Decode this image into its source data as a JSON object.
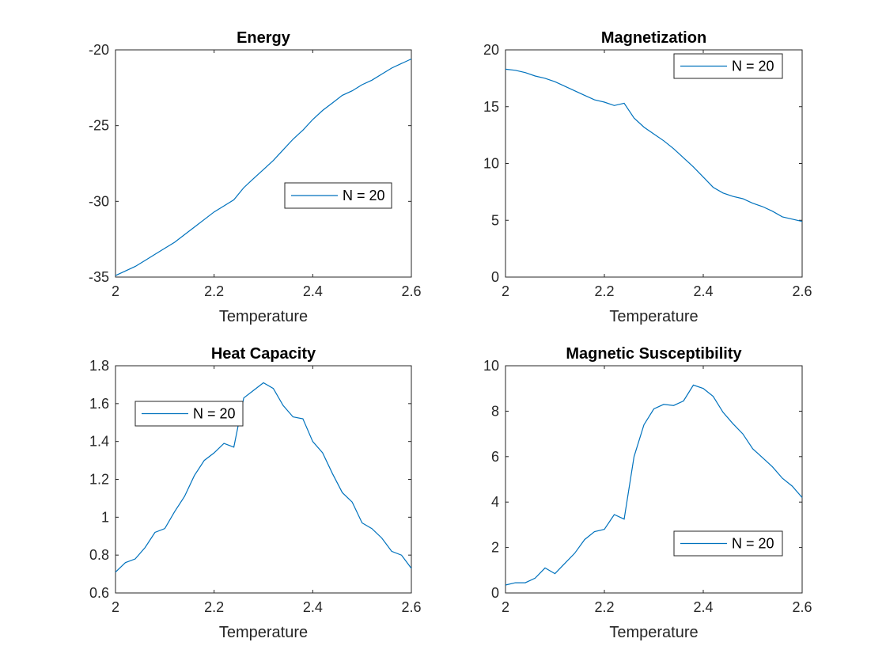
{
  "chart_data": [
    {
      "type": "line",
      "title": "Energy",
      "xlabel": "Temperature",
      "ylabel": "",
      "xlim": [
        2,
        2.6
      ],
      "ylim": [
        -35,
        -20
      ],
      "xticks": [
        "2",
        "2.2",
        "2.4",
        "2.6"
      ],
      "yticks": [
        "-35",
        "-30",
        "-25",
        "-20"
      ],
      "legend": "inside-right-middle",
      "series": [
        {
          "name": "N = 20",
          "color": "#0072BD",
          "x": [
            2.0,
            2.02,
            2.04,
            2.06,
            2.08,
            2.1,
            2.12,
            2.14,
            2.16,
            2.18,
            2.2,
            2.22,
            2.24,
            2.26,
            2.28,
            2.3,
            2.32,
            2.34,
            2.36,
            2.38,
            2.4,
            2.42,
            2.44,
            2.46,
            2.48,
            2.5,
            2.52,
            2.54,
            2.56,
            2.58,
            2.6
          ],
          "y": [
            -34.9,
            -34.6,
            -34.3,
            -33.9,
            -33.5,
            -33.1,
            -32.7,
            -32.2,
            -31.7,
            -31.2,
            -30.7,
            -30.3,
            -29.9,
            -29.1,
            -28.5,
            -27.9,
            -27.3,
            -26.6,
            -25.9,
            -25.3,
            -24.6,
            -24.0,
            -23.5,
            -23.0,
            -22.7,
            -22.3,
            -22.0,
            -21.6,
            -21.2,
            -20.9,
            -20.6
          ]
        }
      ]
    },
    {
      "type": "line",
      "title": "Magnetization",
      "xlabel": "Temperature",
      "ylabel": "",
      "xlim": [
        2,
        2.6
      ],
      "ylim": [
        0,
        20
      ],
      "xticks": [
        "2",
        "2.2",
        "2.4",
        "2.6"
      ],
      "yticks": [
        "0",
        "5",
        "10",
        "15",
        "20"
      ],
      "legend": "top-right",
      "series": [
        {
          "name": "N = 20",
          "color": "#0072BD",
          "x": [
            2.0,
            2.02,
            2.04,
            2.06,
            2.08,
            2.1,
            2.12,
            2.14,
            2.16,
            2.18,
            2.2,
            2.22,
            2.24,
            2.26,
            2.28,
            2.3,
            2.32,
            2.34,
            2.36,
            2.38,
            2.4,
            2.42,
            2.44,
            2.46,
            2.48,
            2.5,
            2.52,
            2.54,
            2.56,
            2.58,
            2.6
          ],
          "y": [
            18.3,
            18.2,
            18.0,
            17.7,
            17.5,
            17.2,
            16.8,
            16.4,
            16.0,
            15.6,
            15.4,
            15.1,
            15.3,
            14.0,
            13.2,
            12.6,
            12.0,
            11.3,
            10.5,
            9.7,
            8.8,
            7.9,
            7.4,
            7.1,
            6.9,
            6.5,
            6.2,
            5.8,
            5.3,
            5.1,
            4.9
          ]
        }
      ]
    },
    {
      "type": "line",
      "title": "Heat Capacity",
      "xlabel": "Temperature",
      "ylabel": "",
      "xlim": [
        2,
        2.6
      ],
      "ylim": [
        0.6,
        1.8
      ],
      "xticks": [
        "2",
        "2.2",
        "2.4",
        "2.6"
      ],
      "yticks": [
        "0.6",
        "0.8",
        "1",
        "1.2",
        "1.4",
        "1.6",
        "1.8"
      ],
      "legend": "top-left",
      "series": [
        {
          "name": "N = 20",
          "color": "#0072BD",
          "x": [
            2.0,
            2.02,
            2.04,
            2.06,
            2.08,
            2.1,
            2.12,
            2.14,
            2.16,
            2.18,
            2.2,
            2.22,
            2.24,
            2.26,
            2.28,
            2.3,
            2.32,
            2.34,
            2.36,
            2.38,
            2.4,
            2.42,
            2.44,
            2.46,
            2.48,
            2.5,
            2.52,
            2.54,
            2.56,
            2.58,
            2.6
          ],
          "y": [
            0.71,
            0.76,
            0.78,
            0.84,
            0.92,
            0.94,
            1.03,
            1.11,
            1.22,
            1.3,
            1.34,
            1.39,
            1.37,
            1.63,
            1.67,
            1.71,
            1.68,
            1.59,
            1.53,
            1.52,
            1.4,
            1.34,
            1.23,
            1.13,
            1.08,
            0.97,
            0.94,
            0.89,
            0.82,
            0.8,
            0.73
          ]
        }
      ]
    },
    {
      "type": "line",
      "title": "Magnetic Susceptibility",
      "xlabel": "Temperature",
      "ylabel": "",
      "xlim": [
        2,
        2.6
      ],
      "ylim": [
        0,
        10
      ],
      "xticks": [
        "2",
        "2.2",
        "2.4",
        "2.6"
      ],
      "yticks": [
        "0",
        "2",
        "4",
        "6",
        "8",
        "10"
      ],
      "legend": "bottom-right",
      "series": [
        {
          "name": "N = 20",
          "color": "#0072BD",
          "x": [
            2.0,
            2.02,
            2.04,
            2.06,
            2.08,
            2.1,
            2.12,
            2.14,
            2.16,
            2.18,
            2.2,
            2.22,
            2.24,
            2.26,
            2.28,
            2.3,
            2.32,
            2.34,
            2.36,
            2.38,
            2.4,
            2.42,
            2.44,
            2.46,
            2.48,
            2.5,
            2.52,
            2.54,
            2.56,
            2.58,
            2.6
          ],
          "y": [
            0.35,
            0.45,
            0.45,
            0.65,
            1.1,
            0.85,
            1.3,
            1.75,
            2.35,
            2.7,
            2.8,
            3.45,
            3.25,
            6.0,
            7.4,
            8.1,
            8.3,
            8.25,
            8.45,
            9.15,
            9.0,
            8.65,
            7.95,
            7.45,
            7.0,
            6.35,
            5.95,
            5.55,
            5.05,
            4.7,
            4.2
          ]
        }
      ]
    }
  ]
}
